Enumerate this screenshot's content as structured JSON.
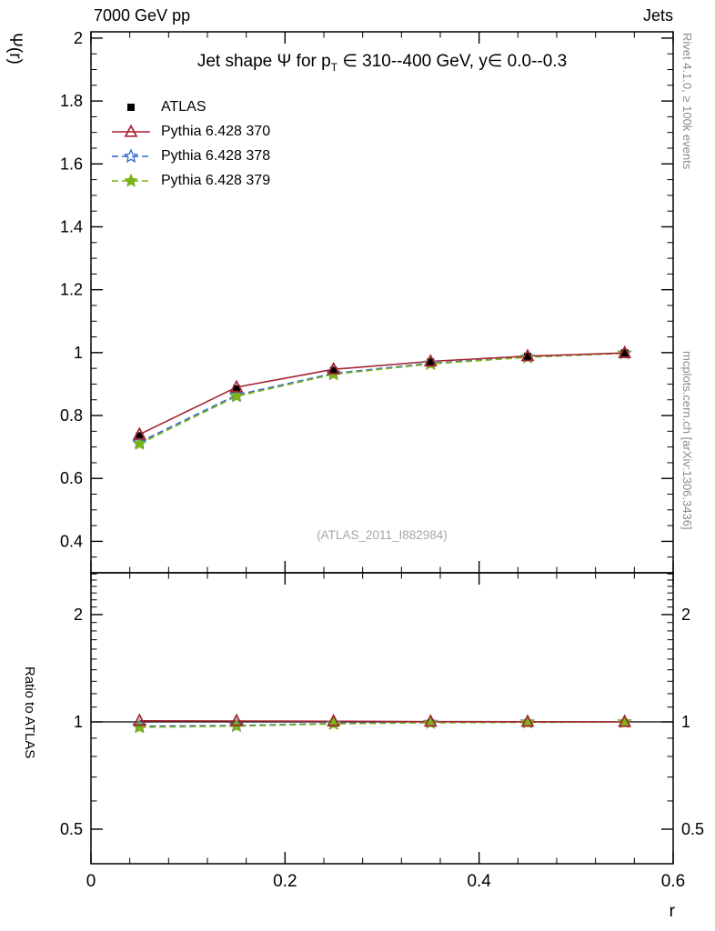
{
  "header": {
    "left": "7000 GeV pp",
    "right": "Jets"
  },
  "labels": {
    "y_main": "Ψ(r)",
    "y_ratio": "Ratio to ATLAS",
    "x": "r"
  },
  "side": {
    "right_top": "Rivet 4.1.0, ≥ 100k events",
    "right_bottom": "mcplots.cern.ch [arXiv:1306.3436]"
  },
  "title": {
    "pre": "Jet shape Ψ for p",
    "sub": "T",
    "post": " ∈ 310--400 GeV, y∈ 0.0--0.3"
  },
  "watermark": "(ATLAS_2011_I882984)",
  "chart_data": {
    "type": "line",
    "x": [
      0.05,
      0.15,
      0.25,
      0.35,
      0.45,
      0.55
    ],
    "xlim": [
      0,
      0.6
    ],
    "x_major_ticks": [
      0,
      0.2,
      0.4,
      0.6
    ],
    "x_tick_labels": [
      "0",
      "0.2",
      "0.4",
      "0.6"
    ],
    "x_minor_step": 0.04,
    "main": {
      "ylabel": "Ψ(r)",
      "scale": "linear",
      "ylim": [
        0.3,
        2.02
      ],
      "major_ticks": [
        0.4,
        0.6,
        0.8,
        1.0,
        1.2,
        1.4,
        1.6,
        1.8,
        2.0
      ],
      "tick_labels": [
        "0.4",
        "0.6",
        "0.8",
        "1",
        "1.2",
        "1.4",
        "1.6",
        "1.8",
        "2"
      ],
      "series": [
        {
          "name": "ATLAS",
          "marker": "square",
          "line": "none",
          "color": "#000000",
          "values": [
            0.735,
            0.885,
            0.943,
            0.97,
            0.988,
            0.999
          ],
          "err": [
            0.012,
            0.008,
            0.006,
            0.004,
            0.003,
            0.002
          ]
        },
        {
          "name": "Pythia 6.428 370",
          "marker": "triangle",
          "line": "solid",
          "color": "#a3222f",
          "values": [
            0.74,
            0.89,
            0.947,
            0.972,
            0.989,
            0.999
          ]
        },
        {
          "name": "Pythia 6.428 378",
          "marker": "star-open",
          "line": "dash",
          "color": "#3366cc",
          "values": [
            0.715,
            0.865,
            0.934,
            0.966,
            0.986,
            0.998
          ]
        },
        {
          "name": "Pythia 6.428 379",
          "marker": "star",
          "line": "dash",
          "color": "#7ab41a",
          "values": [
            0.71,
            0.861,
            0.931,
            0.964,
            0.985,
            0.998
          ]
        }
      ]
    },
    "ratio": {
      "ylabel": "Ratio to ATLAS",
      "scale": "log",
      "ylim": [
        0.4,
        2.62
      ],
      "major_ticks": [
        0.5,
        1,
        2
      ],
      "tick_labels": [
        "0.5",
        "1",
        "2"
      ],
      "reference": 1,
      "series": [
        {
          "name": "Pythia 6.428 370",
          "values": [
            1.007,
            1.006,
            1.004,
            1.002,
            1.001,
            1.0
          ]
        },
        {
          "name": "Pythia 6.428 378",
          "values": [
            0.973,
            0.977,
            0.99,
            0.996,
            0.998,
            0.999
          ]
        },
        {
          "name": "Pythia 6.428 379",
          "values": [
            0.966,
            0.973,
            0.987,
            0.994,
            0.997,
            0.999
          ]
        }
      ]
    }
  }
}
